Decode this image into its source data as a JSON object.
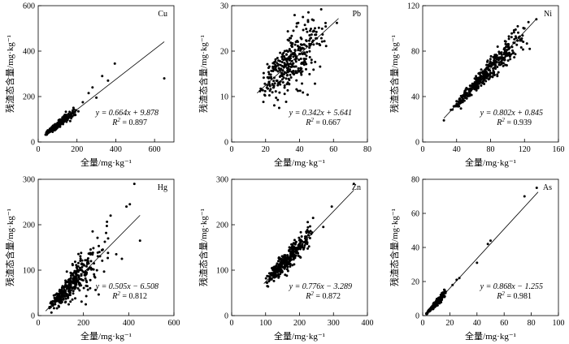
{
  "chart_data": [
    {
      "type": "scatter",
      "label": "Cu",
      "xlabel": "全量/mg·kg⁻¹",
      "ylabel": "残渣态含量/mg·kg⁻¹",
      "xlim": [
        0,
        700
      ],
      "ylim": [
        0,
        600
      ],
      "xticks": [
        0,
        200,
        400,
        600
      ],
      "yticks": [
        0,
        200,
        400,
        600
      ],
      "fit": {
        "slope": 0.664,
        "intercept": 9.878,
        "xrange": [
          35,
          650
        ]
      },
      "equation": "y = 0.664x + 9.878",
      "r2_prefix": "R",
      "r2_sup": "2",
      "r2_value": " = 0.897",
      "cloud": {
        "x_min": 30,
        "x_max": 210,
        "x_mode": 70,
        "noise": 0.1,
        "n": 230,
        "seed": 11
      },
      "extra_points": [
        [
          230,
          175
        ],
        [
          260,
          215
        ],
        [
          280,
          240
        ],
        [
          300,
          195
        ],
        [
          330,
          290
        ],
        [
          360,
          270
        ],
        [
          395,
          345
        ],
        [
          650,
          280
        ]
      ]
    },
    {
      "type": "scatter",
      "label": "Pb",
      "xlabel": "全量/mg·kg⁻¹",
      "ylabel": "残渣态含量/mg·kg⁻¹",
      "xlim": [
        0,
        80
      ],
      "ylim": [
        0,
        30
      ],
      "xticks": [
        0,
        20,
        40,
        60,
        80
      ],
      "yticks": [
        0,
        10,
        20,
        30
      ],
      "fit": {
        "slope": 0.342,
        "intercept": 5.641,
        "xrange": [
          15,
          63
        ]
      },
      "equation": "y = 0.342x + 5.641",
      "r2_prefix": "R",
      "r2_sup": "2",
      "r2_value": " = 0.667",
      "cloud": {
        "x_min": 15,
        "x_max": 58,
        "x_mode": 33,
        "noise": 0.17,
        "n": 330,
        "seed": 23
      },
      "extra_points": [
        [
          28,
          7.5
        ],
        [
          42,
          27.5
        ],
        [
          45,
          26.8
        ],
        [
          62,
          26.2
        ]
      ]
    },
    {
      "type": "scatter",
      "label": "Ni",
      "xlabel": "全量/mg·kg⁻¹",
      "ylabel": "残渣态含量/mg·kg⁻¹",
      "xlim": [
        0,
        160
      ],
      "ylim": [
        0,
        120
      ],
      "xticks": [
        0,
        40,
        80,
        120,
        160
      ],
      "yticks": [
        0,
        40,
        80,
        120
      ],
      "fit": {
        "slope": 0.802,
        "intercept": 0.845,
        "xrange": [
          25,
          134
        ]
      },
      "equation": "y = 0.802x + 0.845",
      "r2_prefix": "R",
      "r2_sup": "2",
      "r2_value": " = 0.939",
      "cloud": {
        "x_min": 30,
        "x_max": 130,
        "x_mode": 72,
        "noise": 0.07,
        "n": 360,
        "seed": 37
      },
      "extra_points": [
        [
          25,
          19
        ],
        [
          134,
          108
        ],
        [
          88,
          58
        ],
        [
          120,
          100
        ]
      ]
    },
    {
      "type": "scatter",
      "label": "Hg",
      "xlabel": "全量/mg·kg⁻¹",
      "ylabel": "残渣态含量/mg·kg⁻¹",
      "xlim": [
        0,
        600
      ],
      "ylim": [
        0,
        300
      ],
      "xticks": [
        0,
        200,
        400,
        600
      ],
      "yticks": [
        0,
        100,
        200,
        300
      ],
      "fit": {
        "slope": 0.505,
        "intercept": -6.508,
        "xrange": [
          33,
          450
        ]
      },
      "equation": "y = 0.505x − 6.508",
      "r2_prefix": "R",
      "r2_sup": "2",
      "r2_value": " = 0.812",
      "cloud": {
        "x_min": 35,
        "x_max": 320,
        "x_mode": 110,
        "noise": 0.25,
        "n": 330,
        "seed": 53
      },
      "extra_points": [
        [
          345,
          135
        ],
        [
          370,
          125
        ],
        [
          390,
          240
        ],
        [
          405,
          245
        ],
        [
          425,
          290
        ],
        [
          450,
          165
        ],
        [
          320,
          220
        ]
      ]
    },
    {
      "type": "scatter",
      "label": "Zn",
      "xlabel": "全量/mg·kg⁻¹",
      "ylabel": "残渣态含量/mg·kg⁻¹",
      "xlim": [
        0,
        400
      ],
      "ylim": [
        0,
        300
      ],
      "xticks": [
        0,
        100,
        200,
        300,
        400
      ],
      "yticks": [
        0,
        100,
        200,
        300
      ],
      "fit": {
        "slope": 0.776,
        "intercept": -3.289,
        "xrange": [
          95,
          360
        ]
      },
      "equation": "y = 0.776x − 3.289",
      "r2_prefix": "R",
      "r2_sup": "2",
      "r2_value": " = 0.872",
      "cloud": {
        "x_min": 100,
        "x_max": 250,
        "x_mode": 140,
        "noise": 0.09,
        "n": 320,
        "seed": 71
      },
      "extra_points": [
        [
          270,
          195
        ],
        [
          295,
          240
        ],
        [
          360,
          290
        ],
        [
          105,
          65
        ],
        [
          240,
          215
        ]
      ]
    },
    {
      "type": "scatter",
      "label": "As",
      "xlabel": "全量/mg·kg⁻¹",
      "ylabel": "残渣态含量/mg·kg⁻¹",
      "xlim": [
        0,
        100
      ],
      "ylim": [
        0,
        80
      ],
      "xticks": [
        0,
        20,
        40,
        60,
        80,
        100
      ],
      "yticks": [
        0,
        20,
        40,
        60,
        80
      ],
      "fit": {
        "slope": 0.868,
        "intercept": -1.255,
        "xrange": [
          2,
          85
        ]
      },
      "equation": "y = 0.868x − 1.255",
      "r2_prefix": "R",
      "r2_sup": "2",
      "r2_value": " = 0.981",
      "cloud": {
        "x_min": 2,
        "x_max": 17,
        "x_mode": 8,
        "noise": 0.12,
        "n": 260,
        "seed": 97
      },
      "extra_points": [
        [
          22,
          18
        ],
        [
          25,
          21
        ],
        [
          27,
          22
        ],
        [
          40,
          31
        ],
        [
          48,
          42
        ],
        [
          50,
          44
        ],
        [
          75,
          70
        ],
        [
          84,
          75
        ]
      ]
    }
  ]
}
